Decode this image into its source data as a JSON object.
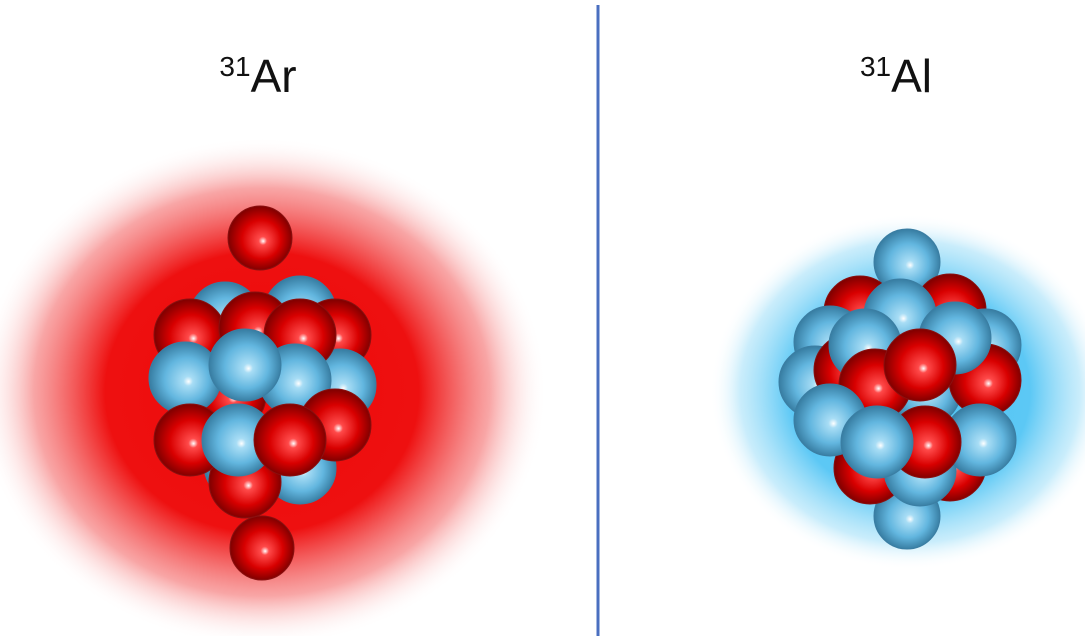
{
  "panels": [
    {
      "mass_number": "31",
      "symbol": "Ar"
    },
    {
      "mass_number": "31",
      "symbol": "Al"
    }
  ]
}
